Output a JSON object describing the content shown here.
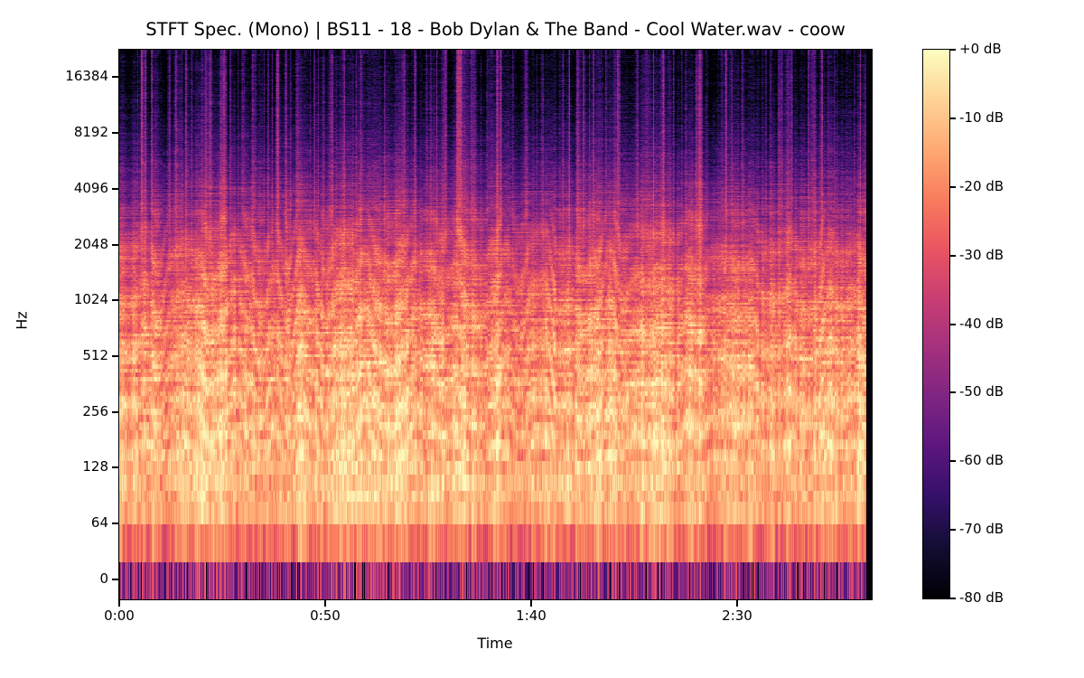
{
  "figure": {
    "title": "STFT Spec. (Mono) | BS11 - 18 - Bob Dylan & The Band - Cool Water.wav - coow",
    "background_color": "#ffffff",
    "text_color": "#000000"
  },
  "chart_data": {
    "type": "heatmap",
    "subtype": "stft-spectrogram",
    "title": "STFT Spec. (Mono) | BS11 - 18 - Bob Dylan & The Band - Cool Water.wav - coow",
    "xlabel": "Time",
    "ylabel": "Hz",
    "x_axis": {
      "tick_labels": [
        "0:00",
        "0:50",
        "1:40",
        "2:30"
      ],
      "tick_seconds": [
        0,
        50,
        100,
        150
      ],
      "duration_seconds": 182.7,
      "silence_from_seconds": 181.3
    },
    "y_axis": {
      "scale": "symlog-base2",
      "tick_labels": [
        "16384",
        "8192",
        "4096",
        "2048",
        "1024",
        "512",
        "256",
        "128",
        "64",
        "0"
      ],
      "tick_hz": [
        16384,
        8192,
        4096,
        2048,
        1024,
        512,
        256,
        128,
        64,
        0
      ],
      "freq_max_hz": 22050,
      "fft_bin_hz": 21.53
    },
    "colorbar": {
      "tick_labels": [
        "+0 dB",
        "-10 dB",
        "-20 dB",
        "-30 dB",
        "-40 dB",
        "-50 dB",
        "-60 dB",
        "-70 dB",
        "-80 dB"
      ],
      "tick_db": [
        0,
        -10,
        -20,
        -30,
        -40,
        -50,
        -60,
        -70,
        -80
      ],
      "min_db": -80,
      "max_db": 0
    },
    "colormap": {
      "name": "magma",
      "stops": [
        "#000004",
        "#120d31",
        "#331068",
        "#5a167e",
        "#7d2482",
        "#a3307e",
        "#c83e73",
        "#e95462",
        "#f97c5d",
        "#fea973",
        "#fed395",
        "#fcfdbf"
      ]
    },
    "freq_envelope_db": [
      [
        70,
        -12.0
      ],
      [
        180,
        -11.2
      ],
      [
        300,
        -13.5
      ],
      [
        460,
        -15.5
      ],
      [
        700,
        -19
      ],
      [
        1000,
        -24
      ],
      [
        1500,
        -30
      ],
      [
        2200,
        -37
      ],
      [
        3200,
        -46
      ],
      [
        4800,
        -56
      ],
      [
        7000,
        -64
      ],
      [
        10000,
        -70
      ],
      [
        14000,
        -74
      ],
      [
        22050,
        -77
      ]
    ],
    "low_bands": [
      {
        "name": "dc-band",
        "base_db": -46.0,
        "stripe_db": 17,
        "black_line_prob": 0.045
      },
      {
        "name": "band-32hz",
        "base_db": -22.5,
        "stripe_db": 9,
        "black_line_prob": 0
      },
      {
        "name": "band-64hz",
        "base_db": -12.5,
        "stripe_db": 6.5,
        "black_line_prob": 0
      }
    ],
    "texture": {
      "cell_noise_db": 8,
      "cell_noise_db_high": 9,
      "column_noise_db": 10,
      "sustain_db": 7,
      "row_db": 8,
      "ripple_db": 3.5,
      "high_streak_db": 60
    }
  }
}
